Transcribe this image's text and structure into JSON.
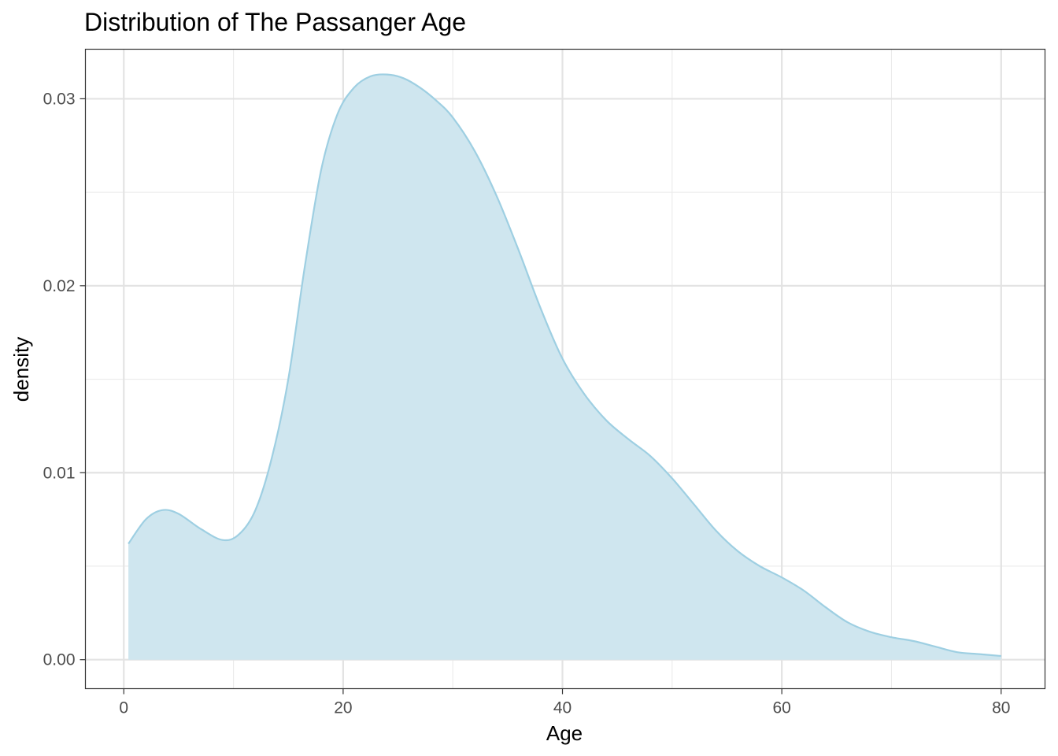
{
  "chart_data": {
    "type": "area",
    "title": "Distribution of The Passanger Age",
    "xlabel": "Age",
    "ylabel": "density",
    "xlim": [
      -3.5,
      84
    ],
    "ylim": [
      -0.00155,
      0.03265
    ],
    "x_ticks": [
      0,
      20,
      40,
      60,
      80
    ],
    "x_tick_labels": [
      "0",
      "20",
      "40",
      "60",
      "80"
    ],
    "y_ticks": [
      0,
      0.01,
      0.02,
      0.03
    ],
    "y_tick_labels": [
      "0.00",
      "0.01",
      "0.02",
      "0.03"
    ],
    "grid": true,
    "legend": "none",
    "series": [
      {
        "color": "#9ecfe2",
        "fill": "#cfe6ef",
        "x": [
          0.42,
          2,
          3.5,
          5,
          7,
          9,
          10.5,
          12,
          13.5,
          15,
          16.5,
          18,
          19.5,
          21,
          22.5,
          24,
          25.5,
          27,
          28.5,
          30,
          32,
          34,
          36,
          38,
          40,
          42,
          44,
          46,
          48,
          50,
          52,
          54,
          56,
          58,
          60,
          62,
          64,
          66,
          68,
          70,
          72,
          74,
          76,
          78,
          80
        ],
        "y": [
          0.0062,
          0.0075,
          0.008,
          0.0078,
          0.007,
          0.0064,
          0.0067,
          0.008,
          0.0108,
          0.015,
          0.021,
          0.0262,
          0.0292,
          0.0306,
          0.0312,
          0.0313,
          0.0311,
          0.0306,
          0.0299,
          0.029,
          0.0272,
          0.0248,
          0.0219,
          0.0188,
          0.0161,
          0.0142,
          0.0128,
          0.0118,
          0.0109,
          0.0097,
          0.0083,
          0.0069,
          0.0058,
          0.005,
          0.0044,
          0.0037,
          0.0028,
          0.002,
          0.0015,
          0.0012,
          0.001,
          0.0007,
          0.0004,
          0.0003,
          0.0002
        ]
      }
    ]
  }
}
